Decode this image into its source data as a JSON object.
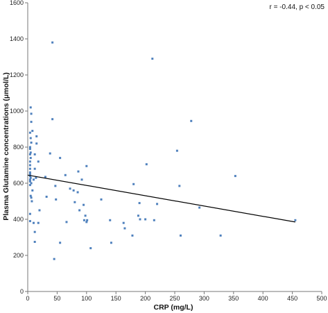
{
  "chart_data": {
    "type": "scatter",
    "xlabel": "CRP (mg/L)",
    "ylabel": "Plasma Glutamine concentrations (μmol/L)",
    "annotation": "r = -0.44, p < 0.05",
    "xlim": [
      0,
      500
    ],
    "ylim": [
      0,
      1600
    ],
    "xticks": [
      0,
      50,
      100,
      150,
      200,
      250,
      300,
      350,
      400,
      450,
      500
    ],
    "yticks": [
      0,
      200,
      400,
      600,
      800,
      1000,
      1200,
      1400,
      1600
    ],
    "grid": false,
    "point_color": "#4F81BD",
    "line_color": "#000000",
    "trendline": {
      "x": [
        0,
        455
      ],
      "y": [
        645,
        385
      ]
    },
    "points": [
      [
        5,
        1020
      ],
      [
        6,
        985
      ],
      [
        6,
        940
      ],
      [
        4,
        880
      ],
      [
        8,
        890
      ],
      [
        5,
        850
      ],
      [
        6,
        825
      ],
      [
        4,
        800
      ],
      [
        4,
        790
      ],
      [
        5,
        770
      ],
      [
        4,
        760
      ],
      [
        5,
        740
      ],
      [
        4,
        720
      ],
      [
        4,
        700
      ],
      [
        4,
        680
      ],
      [
        4,
        660
      ],
      [
        4,
        650
      ],
      [
        4,
        640
      ],
      [
        5,
        630
      ],
      [
        4,
        620
      ],
      [
        4,
        610
      ],
      [
        6,
        600
      ],
      [
        4,
        590
      ],
      [
        8,
        560
      ],
      [
        5,
        530
      ],
      [
        6,
        520
      ],
      [
        7,
        500
      ],
      [
        4,
        430
      ],
      [
        4,
        390
      ],
      [
        10,
        380
      ],
      [
        14,
        630
      ],
      [
        12,
        760
      ],
      [
        12,
        680
      ],
      [
        10,
        620
      ],
      [
        15,
        860
      ],
      [
        15,
        820
      ],
      [
        18,
        720
      ],
      [
        20,
        450
      ],
      [
        12,
        330
      ],
      [
        12,
        275
      ],
      [
        18,
        380
      ],
      [
        30,
        635
      ],
      [
        32,
        525
      ],
      [
        38,
        765
      ],
      [
        42,
        1380
      ],
      [
        42,
        955
      ],
      [
        47,
        585
      ],
      [
        48,
        510
      ],
      [
        55,
        740
      ],
      [
        55,
        270
      ],
      [
        45,
        180
      ],
      [
        64,
        645
      ],
      [
        66,
        385
      ],
      [
        72,
        570
      ],
      [
        78,
        560
      ],
      [
        80,
        495
      ],
      [
        85,
        550
      ],
      [
        86,
        665
      ],
      [
        88,
        450
      ],
      [
        92,
        620
      ],
      [
        95,
        480
      ],
      [
        96,
        395
      ],
      [
        98,
        420
      ],
      [
        100,
        385
      ],
      [
        100,
        695
      ],
      [
        101,
        395
      ],
      [
        107,
        240
      ],
      [
        125,
        510
      ],
      [
        140,
        395
      ],
      [
        142,
        270
      ],
      [
        163,
        380
      ],
      [
        165,
        350
      ],
      [
        178,
        310
      ],
      [
        180,
        595
      ],
      [
        188,
        420
      ],
      [
        190,
        490
      ],
      [
        191,
        400
      ],
      [
        200,
        400
      ],
      [
        202,
        705
      ],
      [
        212,
        1290
      ],
      [
        215,
        395
      ],
      [
        220,
        485
      ],
      [
        254,
        780
      ],
      [
        258,
        585
      ],
      [
        260,
        310
      ],
      [
        278,
        945
      ],
      [
        292,
        465
      ],
      [
        328,
        310
      ],
      [
        353,
        640
      ],
      [
        455,
        395
      ]
    ]
  }
}
